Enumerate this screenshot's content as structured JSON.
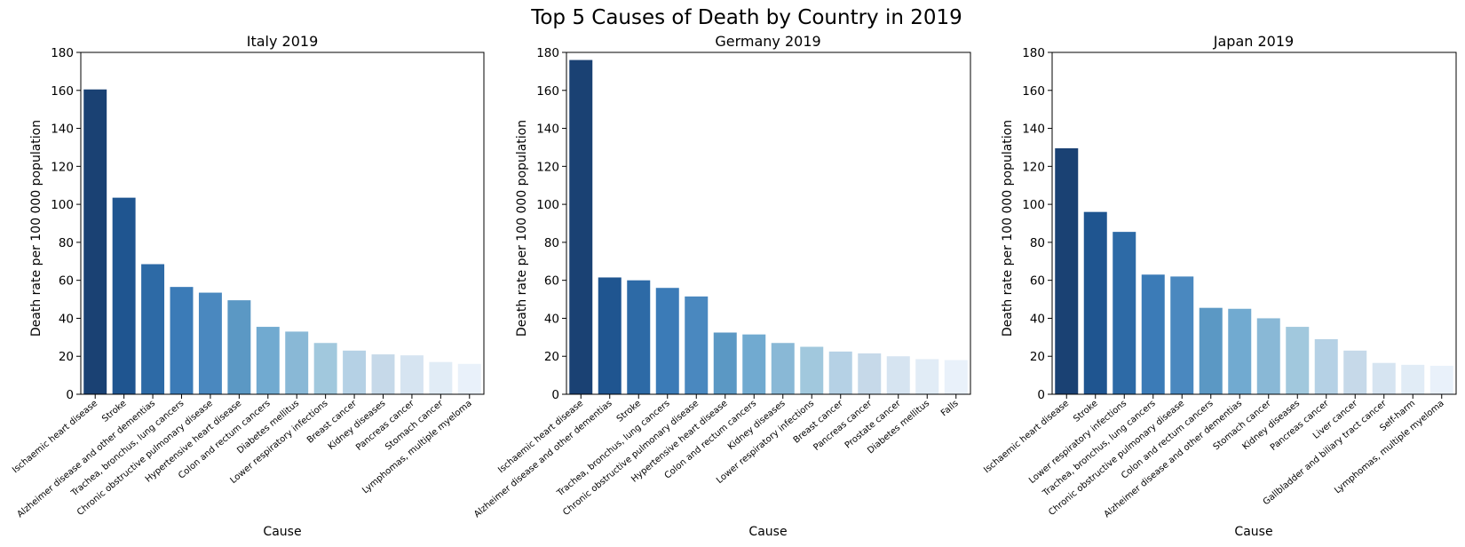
{
  "figure_title": "Top 5 Causes of Death by Country in 2019",
  "palette": [
    "#1a4173",
    "#1f5590",
    "#2d6aa6",
    "#3b7bb7",
    "#4a88bf",
    "#5b98c4",
    "#71aad0",
    "#89b8d6",
    "#a1c8dd",
    "#b5d1e5",
    "#c6d9e9",
    "#d6e4f1",
    "#e1ecf6",
    "#e9f1fa"
  ],
  "chart_data": [
    {
      "type": "bar",
      "title": "Italy 2019",
      "xlabel": "Cause",
      "ylabel": "Death rate per 100 000 population",
      "ylim": [
        0,
        180
      ],
      "yticks": [
        "0",
        "20",
        "40",
        "60",
        "80",
        "100",
        "120",
        "140",
        "160",
        "180"
      ],
      "categories": [
        "Ischaemic heart disease",
        "Stroke",
        "Alzheimer disease and other dementias",
        "Trachea, bronchus, lung cancers",
        "Chronic obstructive pulmonary disease",
        "Hypertensive heart disease",
        "Colon and rectum cancers",
        "Diabetes mellitus",
        "Lower respiratory infections",
        "Breast cancer",
        "Kidney diseases",
        "Pancreas cancer",
        "Stomach cancer",
        "Lymphomas, multiple myeloma"
      ],
      "values": [
        160.5,
        103.5,
        68.5,
        56.5,
        53.5,
        49.5,
        35.5,
        33,
        27,
        23,
        21,
        20.5,
        17,
        16
      ]
    },
    {
      "type": "bar",
      "title": "Germany 2019",
      "xlabel": "Cause",
      "ylabel": "Death rate per 100 000 population",
      "ylim": [
        0,
        180
      ],
      "yticks": [
        "0",
        "20",
        "40",
        "60",
        "80",
        "100",
        "120",
        "140",
        "160",
        "180"
      ],
      "categories": [
        "Ischaemic heart disease",
        "Alzheimer disease and other dementias",
        "Stroke",
        "Trachea, bronchus, lung cancers",
        "Chronic obstructive pulmonary disease",
        "Hypertensive heart disease",
        "Colon and rectum cancers",
        "Kidney diseases",
        "Lower respiratory infections",
        "Breast cancer",
        "Pancreas cancer",
        "Prostate cancer",
        "Diabetes mellitus",
        "Falls"
      ],
      "values": [
        176,
        61.5,
        60,
        56,
        51.5,
        32.5,
        31.5,
        27,
        25,
        22.5,
        21.5,
        20,
        18.5,
        18
      ]
    },
    {
      "type": "bar",
      "title": "Japan 2019",
      "xlabel": "Cause",
      "ylabel": "Death rate per 100 000 population",
      "ylim": [
        0,
        180
      ],
      "yticks": [
        "0",
        "20",
        "40",
        "60",
        "80",
        "100",
        "120",
        "140",
        "160",
        "180"
      ],
      "categories": [
        "Ischaemic heart disease",
        "Stroke",
        "Lower respiratory infections",
        "Trachea, bronchus, lung cancers",
        "Chronic obstructive pulmonary disease",
        "Colon and rectum cancers",
        "Alzheimer disease and other dementias",
        "Stomach cancer",
        "Kidney diseases",
        "Pancreas cancer",
        "Liver cancer",
        "Gallbladder and biliary tract cancer",
        "Self-harm",
        "Lymphomas, multiple myeloma"
      ],
      "values": [
        129.5,
        96,
        85.5,
        63,
        62,
        45.5,
        45,
        40,
        35.5,
        29,
        23,
        16.5,
        15.5,
        15
      ]
    }
  ]
}
